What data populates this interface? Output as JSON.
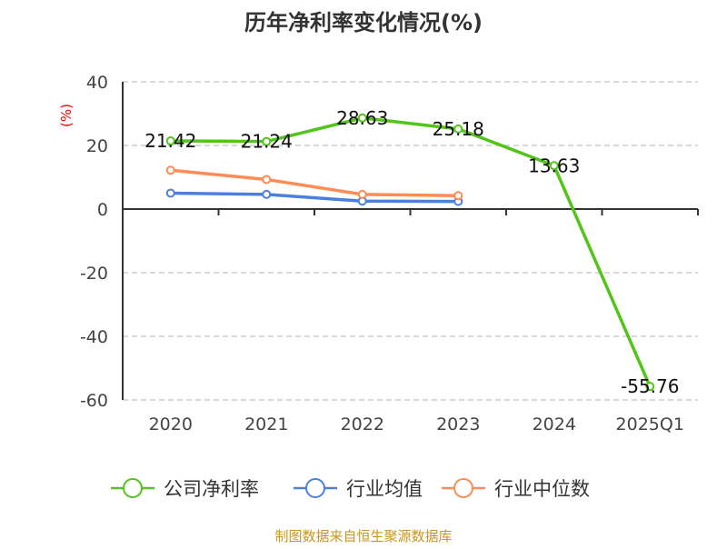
{
  "chart_data": {
    "type": "line",
    "title": "历年净利率变化情况(%)",
    "ylabel": "(%)",
    "xlabel": "",
    "categories": [
      "2020",
      "2021",
      "2022",
      "2023",
      "2024",
      "2025Q1"
    ],
    "ylim": [
      -60,
      40
    ],
    "yticks": [
      40,
      20,
      0,
      -20,
      -40,
      -60
    ],
    "grid": true,
    "legend_position": "bottom",
    "series": [
      {
        "name": "公司净利率",
        "color": "#52c41a",
        "values": [
          21.42,
          21.24,
          28.63,
          25.18,
          13.63,
          -55.76
        ],
        "labels": [
          "21.42",
          "21.24",
          "28.63",
          "25.18",
          "13.63",
          "-55.76"
        ]
      },
      {
        "name": "行业均值",
        "color": "#4a80e0",
        "values": [
          5.0,
          4.6,
          2.5,
          2.4,
          null,
          null
        ]
      },
      {
        "name": "行业中位数",
        "color": "#ff8c55",
        "values": [
          12.2,
          9.3,
          4.6,
          4.2,
          null,
          null
        ]
      }
    ]
  },
  "source": "制图数据来自恒生聚源数据库"
}
